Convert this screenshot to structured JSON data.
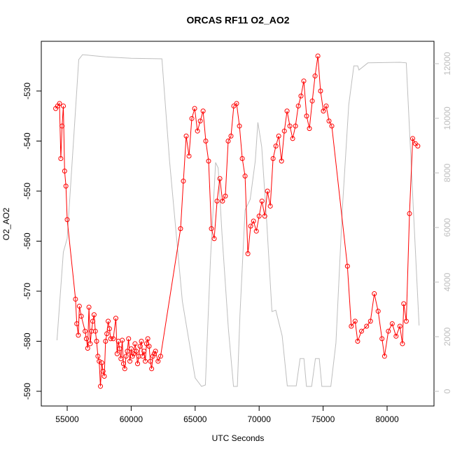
{
  "chart_data": {
    "type": "line",
    "title": "ORCAS RF11 O2_AO2",
    "x_label": "UTC Seconds",
    "y_label": "O2_AO2",
    "xlim": [
      52976,
      83665
    ],
    "xticks": [
      55000,
      60000,
      65000,
      70000,
      75000,
      80000
    ],
    "ylim": [
      -592.94,
      -520.07
    ],
    "yticks": [
      -590,
      -580,
      -570,
      -560,
      -550,
      -540,
      -530
    ],
    "y2lim": [
      -538,
      12820
    ],
    "y2ticks": [
      0,
      2000,
      4000,
      6000,
      8000,
      10000,
      12000
    ],
    "series": [
      {
        "color": "#ff0000",
        "marker": "circle",
        "x": [
          54100,
          54250,
          54400,
          54500,
          54600,
          54700,
          54800,
          54900,
          55000,
          55650,
          55750,
          55870,
          55950,
          56100,
          56400,
          56500,
          56600,
          56700,
          56800,
          56900,
          57000,
          57100,
          57200,
          57300,
          57400,
          57500,
          57600,
          57700,
          57800,
          57900,
          58000,
          58100,
          58200,
          58300,
          58400,
          58600,
          58800,
          58900,
          59000,
          59100,
          59200,
          59300,
          59400,
          59500,
          59600,
          59700,
          59800,
          59900,
          60000,
          60100,
          60200,
          60300,
          60400,
          60500,
          60600,
          60700,
          60800,
          60900,
          61000,
          61100,
          61200,
          61300,
          61400,
          61500,
          61600,
          61700,
          61800,
          61900,
          62100,
          62300,
          63860,
          64080,
          64300,
          64520,
          64740,
          64960,
          65180,
          65400,
          65620,
          65830,
          66050,
          66270,
          66490,
          66710,
          66930,
          67140,
          67360,
          67580,
          67800,
          68020,
          68240,
          68460,
          68680,
          68900,
          69120,
          69340,
          69560,
          69780,
          70000,
          70220,
          70440,
          70650,
          70870,
          71090,
          71310,
          71530,
          71750,
          71970,
          72180,
          72400,
          72620,
          72840,
          73060,
          73270,
          73490,
          73710,
          73930,
          74150,
          74370,
          74590,
          74800,
          75020,
          75240,
          75460,
          75680,
          76900,
          77200,
          77500,
          77700,
          78000,
          78400,
          78700,
          79000,
          79300,
          79600,
          79800,
          80100,
          80400,
          80700,
          81000,
          81200,
          81300,
          81500,
          81750,
          82000,
          82200,
          82400
        ],
        "values": [
          -533.5,
          -533,
          -532.5,
          -543.5,
          -537,
          -533,
          -546,
          -549,
          -555.7,
          -571.6,
          -576.5,
          -578.8,
          -573,
          -575,
          -578,
          -579.5,
          -581.4,
          -573.2,
          -580.5,
          -578,
          -576,
          -574.7,
          -578,
          -580,
          -583,
          -584,
          -589,
          -584.3,
          -586,
          -587,
          -580,
          -578.5,
          -576,
          -577.5,
          -579.5,
          -579.5,
          -575.4,
          -582.5,
          -580,
          -581.5,
          -583.5,
          -579.8,
          -584.5,
          -585.5,
          -583,
          -582,
          -579.5,
          -584,
          -581.5,
          -583,
          -582.5,
          -580.5,
          -582,
          -584.5,
          -583,
          -581,
          -580,
          -583,
          -582,
          -584,
          -580.5,
          -579.5,
          -581,
          -584,
          -585.5,
          -583,
          -582.5,
          -582,
          -584,
          -583,
          -557.5,
          -548,
          -539,
          -543,
          -535.5,
          -533.5,
          -538,
          -536,
          -534,
          -540,
          -544,
          -557.5,
          -559.5,
          -552,
          -547.5,
          -552,
          -551,
          -540,
          -539,
          -533,
          -532.5,
          -537,
          -543.5,
          -547,
          -562.5,
          -557,
          -556,
          -558,
          -555,
          -552,
          -555,
          -550,
          -553,
          -543.5,
          -541,
          -539,
          -544,
          -538,
          -534,
          -537,
          -539.5,
          -537,
          -533,
          -531,
          -528,
          -535,
          -537.5,
          -532,
          -527,
          -523,
          -530,
          -534,
          -533,
          -536,
          -537,
          -565,
          -577,
          -576,
          -580,
          -578,
          -577,
          -576,
          -570.5,
          -574,
          -579.5,
          -583,
          -578,
          -576.5,
          -579,
          -577,
          -580.5,
          -572.5,
          -576,
          -554.5,
          -539.5,
          -540.5,
          -541
        ]
      },
      {
        "color": "#bebebe",
        "marker": "none",
        "axis": "y2",
        "x": [
          54200,
          54700,
          55000,
          55500,
          55900,
          56200,
          58000,
          60000,
          62400,
          63000,
          64000,
          65000,
          65500,
          65800,
          66200,
          66600,
          66800,
          67100,
          67600,
          68000,
          68300,
          68500,
          68900,
          69300,
          69700,
          69900,
          70200,
          70600,
          71000,
          71300,
          71800,
          72200,
          72900,
          73200,
          73500,
          73700,
          74100,
          74400,
          74700,
          74900,
          75600,
          76000,
          76500,
          77000,
          77400,
          77700,
          77800,
          78500,
          81000,
          81500,
          82000,
          82500
        ],
        "values": [
          1870,
          5100,
          5600,
          9200,
          12150,
          12330,
          12250,
          12200,
          12180,
          8440,
          3300,
          490,
          180,
          230,
          4850,
          8380,
          8180,
          5740,
          2280,
          180,
          180,
          2800,
          6640,
          7030,
          8440,
          9850,
          8950,
          6130,
          2920,
          2970,
          2030,
          200,
          200,
          1200,
          1200,
          180,
          180,
          1200,
          1200,
          180,
          180,
          1770,
          6640,
          10490,
          11920,
          11920,
          11770,
          12030,
          12050,
          12030,
          7150,
          2410
        ]
      }
    ]
  }
}
